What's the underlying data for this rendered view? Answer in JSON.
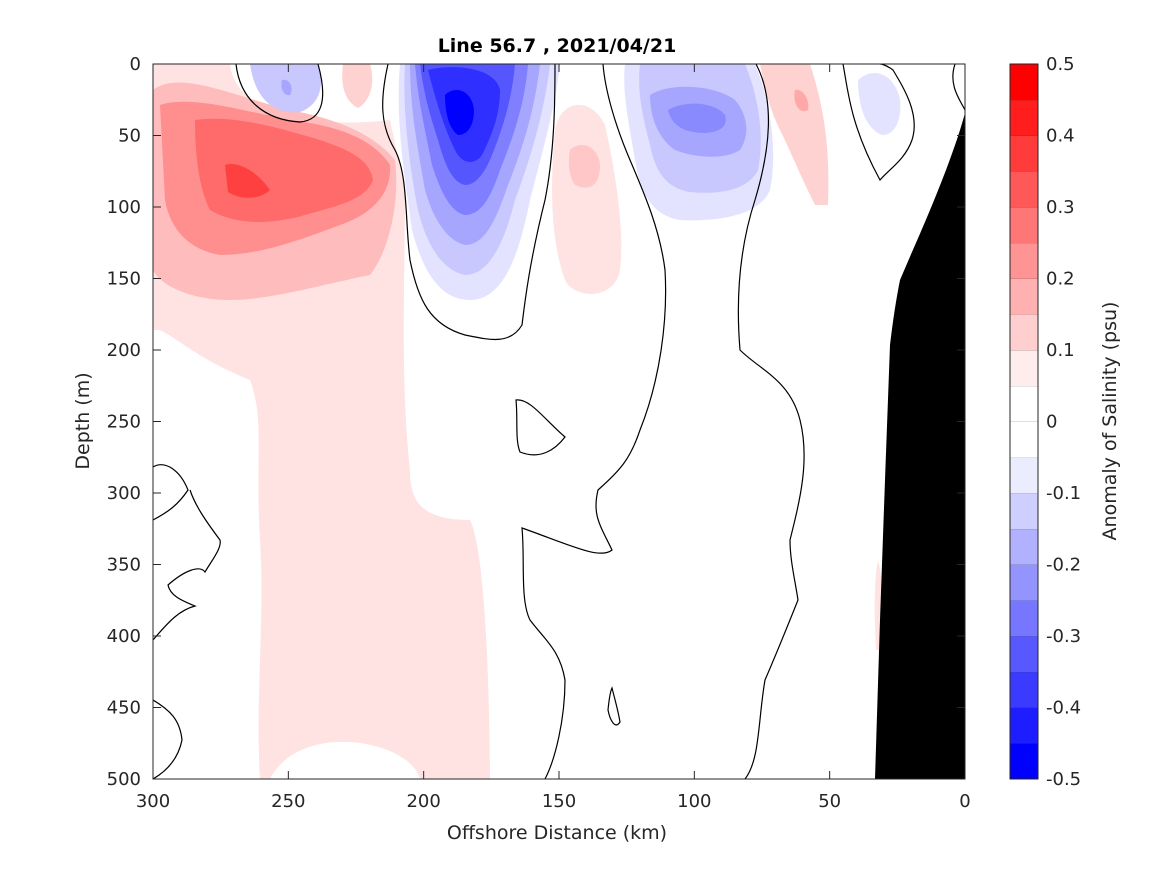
{
  "chart_data": {
    "type": "heatmap",
    "subtype": "filled-contour section plot",
    "title": "Line 56.7 , 2021/04/21",
    "xlabel": "Offshore Distance (km)",
    "ylabel": "Depth (m)",
    "xlim": [
      300,
      0
    ],
    "x_reversed": true,
    "ylim": [
      0,
      500
    ],
    "y_reversed": true,
    "x_ticks": [
      "300",
      "250",
      "200",
      "150",
      "100",
      "50",
      "0"
    ],
    "y_ticks": [
      "0",
      "50",
      "100",
      "150",
      "200",
      "250",
      "300",
      "350",
      "400",
      "450",
      "500"
    ],
    "colorbar": {
      "label": "Anomaly of Salinity (psu)",
      "range": [
        -0.5,
        0.5
      ],
      "ticks": [
        "0.5",
        "0.4",
        "0.3",
        "0.2",
        "0.1",
        "0",
        "-0.1",
        "-0.2",
        "-0.3",
        "-0.4",
        "-0.5"
      ],
      "colors": [
        "#0000ff",
        "#1d1dff",
        "#3b3bff",
        "#5858ff",
        "#7676ff",
        "#9494ff",
        "#b1b1ff",
        "#cfcfff",
        "#ececff",
        "#ffffff",
        "#ffffff",
        "#ffecec",
        "#ffcfcf",
        "#ffb1b1",
        "#ff9494",
        "#ff7676",
        "#ff5858",
        "#ff3b3b",
        "#ff1d1d",
        "#ff0000"
      ]
    },
    "contours": [
      {
        "center": [
          183,
          40
        ],
        "peak": -0.5,
        "note": "strongest fresh anomaly"
      },
      {
        "center": [
          100,
          50
        ],
        "peak": -0.25
      },
      {
        "center": [
          250,
          20
        ],
        "peak": -0.15
      },
      {
        "center": [
          30,
          25
        ],
        "peak": -0.1
      },
      {
        "center": [
          265,
          90
        ],
        "peak": 0.45,
        "note": "strongest salty anomaly"
      },
      {
        "center": [
          227,
          75
        ],
        "peak": 0.35
      },
      {
        "center": [
          135,
          80
        ],
        "peak": 0.15
      },
      {
        "center": [
          60,
          25
        ],
        "peak": 0.2
      },
      {
        "center": [
          220,
          20
        ],
        "peak": 0.15
      },
      {
        "center": [
          240,
          300
        ],
        "peak": 0.08,
        "note": "weak salty column to 500 m"
      }
    ],
    "zero_contour": "black",
    "bathymetry_fill": "#000000"
  }
}
